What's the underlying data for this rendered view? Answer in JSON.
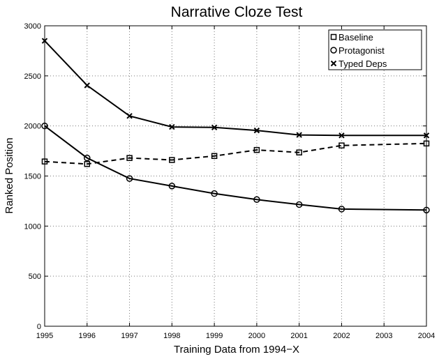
{
  "chart_data": {
    "type": "line",
    "title": "Narrative Cloze Test",
    "xlabel": "Training Data from 1994−X",
    "ylabel": "Ranked Position",
    "x": [
      1995,
      1996,
      1997,
      1998,
      1999,
      2000,
      2001,
      2002,
      2003,
      2004
    ],
    "x_tick_labels": [
      "1995",
      "1996",
      "1997",
      "1998",
      "1999",
      "2000",
      "2001",
      "2002",
      "2003",
      "2004"
    ],
    "xlim": [
      1995,
      2004
    ],
    "ylim": [
      0,
      3000
    ],
    "y_ticks": [
      0,
      500,
      1000,
      1500,
      2000,
      2500,
      3000
    ],
    "y_tick_labels": [
      "0",
      "500",
      "1000",
      "1500",
      "2000",
      "2500",
      "3000"
    ],
    "grid": true,
    "legend_position": "top-right",
    "series": [
      {
        "name": "Baseline",
        "marker": "square",
        "line_style": "dashed",
        "color": "#000000",
        "x": [
          1995,
          1996,
          1997,
          1998,
          1999,
          2000,
          2001,
          2002,
          2004
        ],
        "values": [
          1645,
          1620,
          1680,
          1660,
          1700,
          1760,
          1735,
          1805,
          1825
        ]
      },
      {
        "name": "Protagonist",
        "marker": "circle",
        "line_style": "solid",
        "color": "#000000",
        "x": [
          1995,
          1996,
          1997,
          1998,
          1999,
          2000,
          2001,
          2002,
          2004
        ],
        "values": [
          2000,
          1680,
          1475,
          1400,
          1325,
          1265,
          1215,
          1170,
          1160
        ]
      },
      {
        "name": "Typed Deps",
        "marker": "x",
        "line_style": "solid",
        "color": "#000000",
        "x": [
          1995,
          1996,
          1997,
          1998,
          1999,
          2000,
          2001,
          2002,
          2004
        ],
        "values": [
          2850,
          2405,
          2100,
          1990,
          1985,
          1955,
          1910,
          1905,
          1905
        ]
      }
    ]
  }
}
